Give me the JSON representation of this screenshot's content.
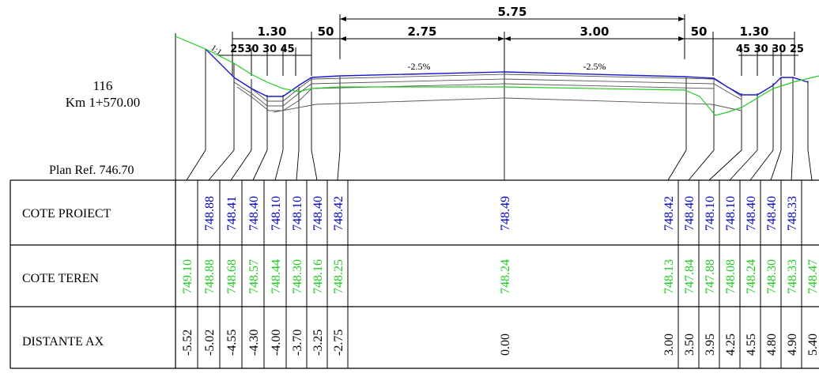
{
  "section": {
    "number": "116",
    "km": "Km 1+570.00",
    "plan_ref": "Plan Ref. 746.70"
  },
  "dimensions": {
    "total": "5.75",
    "left_shoulder": "1.30",
    "left_fifty": "50",
    "left_lane": "2.75",
    "right_lane": "3.00",
    "right_fifty": "50",
    "right_shoulder": "1.30",
    "left_details": "2530 30 45",
    "right_details": "45 30 30 25",
    "slope_ratio": "1:1",
    "slope_left": "-2.5%",
    "slope_right": "-2.5%"
  },
  "table": {
    "rows": [
      {
        "label": "COTE PROIECT",
        "color": "#0000cc"
      },
      {
        "label": "COTE TEREN",
        "color": "#22cc22"
      },
      {
        "label": "DISTANTE AX",
        "color": "#000000"
      }
    ],
    "cote_proiect": [
      "748.88",
      "748.41",
      "748.40",
      "748.10",
      "748.10",
      "748.40",
      "748.42",
      "748.49",
      "748.42",
      "748.40",
      "748.10",
      "748.10",
      "748.40",
      "748.40",
      "748.33"
    ],
    "cote_teren": [
      "749.10",
      "748.88",
      "748.68",
      "748.57",
      "748.44",
      "748.30",
      "748.16",
      "748.25",
      "748.24",
      "748.13",
      "747.84",
      "747.88",
      "748.08",
      "748.24",
      "748.30",
      "748.33",
      "748.47"
    ],
    "distante_ax": [
      "-5.52",
      "-5.02",
      "-4.55",
      "-4.30",
      "-4.00",
      "-3.70",
      "-3.25",
      "-2.75",
      "0.00",
      "3.00",
      "3.50",
      "3.95",
      "4.25",
      "4.55",
      "4.80",
      "4.90",
      "5.40"
    ]
  },
  "colors": {
    "design_line": "#1a1acc",
    "terrain_line": "#22cc22",
    "structure": "#555555"
  }
}
